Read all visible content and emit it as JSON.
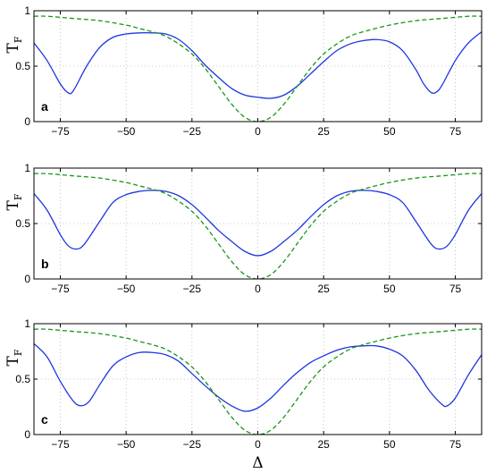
{
  "chart_data": {
    "type": "line",
    "xlabel": "Δ",
    "ylabel_main": "T",
    "ylabel_sub": "F",
    "xlim": [
      -85,
      85
    ],
    "ylim": [
      0,
      1
    ],
    "xticks": [
      -75,
      -50,
      -25,
      0,
      25,
      50,
      75
    ],
    "xtick_labels": [
      "−75",
      "−50",
      "−25",
      "0",
      "25",
      "50",
      "75"
    ],
    "yticks": [
      0,
      0.5,
      1
    ],
    "ytick_labels": [
      "0",
      "0.5",
      "1"
    ],
    "grid": true,
    "colors": {
      "solid": "#1f35e0",
      "dashed": "#189618"
    },
    "panels": [
      {
        "label": "a",
        "series": [
          {
            "style": "solid",
            "x": [
              -85,
              -80,
              -75,
              -72,
              -70,
              -65,
              -60,
              -55,
              -50,
              -45,
              -40,
              -35,
              -30,
              -25,
              -20,
              -15,
              -10,
              -5,
              0,
              5,
              10,
              15,
              20,
              25,
              30,
              35,
              40,
              45,
              50,
              55,
              60,
              63,
              66,
              68,
              70,
              75,
              80,
              85
            ],
            "y": [
              0.71,
              0.55,
              0.34,
              0.26,
              0.28,
              0.5,
              0.67,
              0.76,
              0.79,
              0.8,
              0.8,
              0.79,
              0.74,
              0.64,
              0.51,
              0.4,
              0.3,
              0.24,
              0.22,
              0.21,
              0.24,
              0.32,
              0.43,
              0.54,
              0.64,
              0.7,
              0.73,
              0.74,
              0.72,
              0.64,
              0.47,
              0.34,
              0.26,
              0.27,
              0.33,
              0.55,
              0.71,
              0.81
            ]
          },
          {
            "style": "dashed",
            "x": [
              -85,
              -80,
              -70,
              -60,
              -50,
              -45,
              -40,
              -35,
              -30,
              -25,
              -20,
              -15,
              -10,
              -5,
              0,
              5,
              10,
              15,
              20,
              25,
              30,
              35,
              40,
              50,
              60,
              70,
              80,
              85
            ],
            "y": [
              0.95,
              0.95,
              0.93,
              0.91,
              0.87,
              0.84,
              0.81,
              0.77,
              0.7,
              0.61,
              0.48,
              0.32,
              0.16,
              0.04,
              0.0,
              0.04,
              0.16,
              0.32,
              0.48,
              0.61,
              0.7,
              0.77,
              0.81,
              0.87,
              0.91,
              0.93,
              0.95,
              0.95
            ]
          }
        ]
      },
      {
        "label": "b",
        "series": [
          {
            "style": "solid",
            "x": [
              -85,
              -80,
              -75,
              -72,
              -69,
              -66,
              -60,
              -55,
              -50,
              -45,
              -40,
              -35,
              -30,
              -25,
              -20,
              -15,
              -10,
              -5,
              0,
              5,
              10,
              15,
              20,
              25,
              30,
              35,
              40,
              45,
              50,
              55,
              60,
              66,
              69,
              72,
              75,
              80,
              85
            ],
            "y": [
              0.77,
              0.62,
              0.4,
              0.3,
              0.27,
              0.31,
              0.52,
              0.69,
              0.76,
              0.79,
              0.8,
              0.79,
              0.75,
              0.67,
              0.56,
              0.44,
              0.34,
              0.25,
              0.21,
              0.25,
              0.34,
              0.44,
              0.56,
              0.67,
              0.75,
              0.79,
              0.8,
              0.79,
              0.76,
              0.69,
              0.52,
              0.31,
              0.27,
              0.3,
              0.4,
              0.62,
              0.77
            ]
          },
          {
            "style": "dashed",
            "x": [
              -85,
              -80,
              -70,
              -60,
              -50,
              -45,
              -40,
              -35,
              -30,
              -25,
              -20,
              -15,
              -10,
              -5,
              0,
              5,
              10,
              15,
              20,
              25,
              30,
              35,
              40,
              50,
              60,
              70,
              80,
              85
            ],
            "y": [
              0.95,
              0.95,
              0.93,
              0.91,
              0.87,
              0.84,
              0.81,
              0.77,
              0.7,
              0.61,
              0.48,
              0.32,
              0.16,
              0.04,
              0.0,
              0.04,
              0.16,
              0.32,
              0.48,
              0.61,
              0.7,
              0.77,
              0.81,
              0.87,
              0.91,
              0.93,
              0.95,
              0.95
            ]
          }
        ]
      },
      {
        "label": "c",
        "series": [
          {
            "style": "solid",
            "x": [
              -85,
              -80,
              -75,
              -70,
              -67,
              -64,
              -60,
              -55,
              -50,
              -45,
              -40,
              -35,
              -30,
              -25,
              -20,
              -15,
              -10,
              -5,
              0,
              5,
              10,
              15,
              20,
              25,
              30,
              35,
              40,
              45,
              50,
              55,
              60,
              65,
              70,
              72,
              75,
              80,
              85
            ],
            "y": [
              0.82,
              0.7,
              0.48,
              0.3,
              0.26,
              0.3,
              0.45,
              0.62,
              0.7,
              0.74,
              0.74,
              0.72,
              0.66,
              0.55,
              0.44,
              0.34,
              0.26,
              0.21,
              0.24,
              0.33,
              0.45,
              0.56,
              0.65,
              0.71,
              0.76,
              0.79,
              0.8,
              0.8,
              0.77,
              0.71,
              0.58,
              0.4,
              0.27,
              0.26,
              0.33,
              0.54,
              0.72
            ]
          },
          {
            "style": "dashed",
            "x": [
              -85,
              -80,
              -70,
              -60,
              -50,
              -45,
              -40,
              -35,
              -30,
              -25,
              -20,
              -15,
              -10,
              -5,
              0,
              5,
              10,
              15,
              20,
              25,
              30,
              35,
              40,
              50,
              60,
              70,
              80,
              85
            ],
            "y": [
              0.95,
              0.95,
              0.93,
              0.91,
              0.87,
              0.84,
              0.81,
              0.77,
              0.7,
              0.61,
              0.48,
              0.32,
              0.16,
              0.04,
              0.0,
              0.04,
              0.16,
              0.32,
              0.48,
              0.61,
              0.7,
              0.77,
              0.81,
              0.87,
              0.91,
              0.93,
              0.95,
              0.95
            ]
          }
        ]
      }
    ]
  }
}
